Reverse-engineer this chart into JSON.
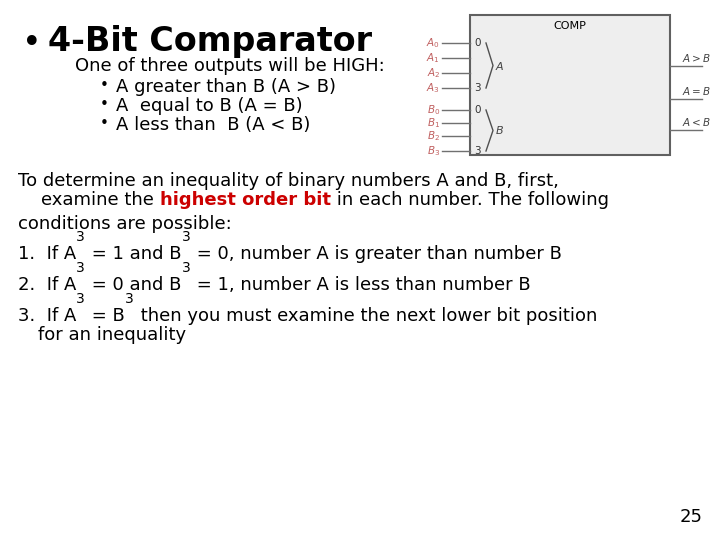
{
  "bg_color": "#ffffff",
  "title": "4-Bit Comparator",
  "subtitle": "One of three outputs will be HIGH:",
  "bullets": [
    "A greater than B (A > B)",
    "A  equal to B (A = B)",
    "A less than  B (A < B)"
  ],
  "para1_line1": "To determine an inequality of binary numbers A and B, first,",
  "para1_line2_pre": "    examine the ",
  "para1_line2_red": "highest order bit",
  "para1_line2_post": " in each number. The following",
  "para2": "conditions are possible:",
  "page_num": "25",
  "red_color": "#cc0000",
  "black_color": "#000000",
  "pink_color": "#c06060",
  "title_fontsize": 24,
  "body_fontsize": 13,
  "sub_fontsize": 10,
  "diag_label_fontsize": 8,
  "diag_pin_fontsize": 7.5
}
